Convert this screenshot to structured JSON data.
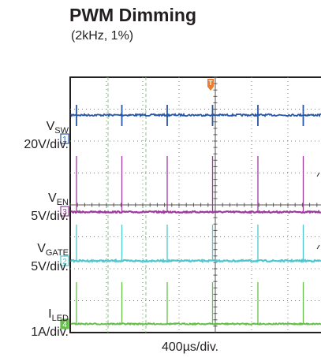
{
  "title": "PWM Dimming",
  "subtitle": "(2kHz, 1%)",
  "colors": {
    "vsw": "#2856a6",
    "ven": "#9b3b9c",
    "vgate": "#4ec7cf",
    "iled": "#67bf4a",
    "trigger": "#ef7b31",
    "grid": "#7a7a7a",
    "cursor": "#7cc87a"
  },
  "channels": [
    {
      "name_main": "V",
      "name_sub": "SW",
      "scale": "20V/div.",
      "marker": "1"
    },
    {
      "name_main": "V",
      "name_sub": "EN",
      "scale": "5V/div.",
      "marker": "3"
    },
    {
      "name_main": "V",
      "name_sub": "GATE",
      "scale": "5V/div.",
      "marker": "2"
    },
    {
      "name_main": "I",
      "name_sub": "LED",
      "scale": "1A/div.",
      "marker": "4"
    }
  ],
  "trigger_marker": "T",
  "timebase": "400µs/div.",
  "chart_data": {
    "type": "line",
    "title": "PWM Dimming",
    "subtitle": "(2kHz, 1%)",
    "xlabel": "400µs/div.",
    "time_per_div_us": 400,
    "pwm_frequency_hz": 2000,
    "duty_cycle_pct": 1,
    "pulse_times_us": [
      0,
      500,
      1000,
      1500,
      2000,
      2500
    ],
    "grid": true,
    "series": [
      {
        "name": "VSW",
        "scale": "20V/div."
      },
      {
        "name": "VEN",
        "scale": "5V/div."
      },
      {
        "name": "VGATE",
        "scale": "5V/div."
      },
      {
        "name": "ILED",
        "scale": "1A/div."
      }
    ]
  }
}
